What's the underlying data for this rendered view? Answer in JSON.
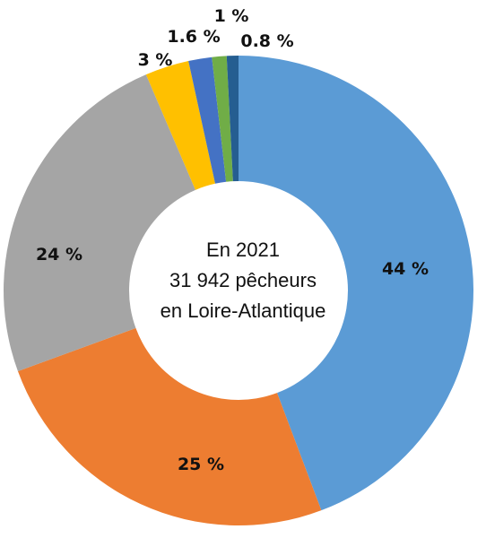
{
  "chart_data": {
    "type": "pie",
    "title": "",
    "center_text": [
      "En 2021",
      "31 942 pêcheurs",
      "en Loire-Atlantique"
    ],
    "slices": [
      {
        "value": 44,
        "label": "44 %",
        "color": "#5b9bd5"
      },
      {
        "value": 25,
        "label": "25 %",
        "color": "#ed7d31"
      },
      {
        "value": 24,
        "label": "24 %",
        "color": "#a5a5a5"
      },
      {
        "value": 3,
        "label": "3 %",
        "color": "#ffc000"
      },
      {
        "value": 1.6,
        "label": "1.6 %",
        "color": "#4472c4"
      },
      {
        "value": 1,
        "label": "1 %",
        "color": "#70ad47"
      },
      {
        "value": 0.8,
        "label": "0.8 %",
        "color": "#255e91"
      }
    ],
    "legend": "none",
    "donut": true
  }
}
